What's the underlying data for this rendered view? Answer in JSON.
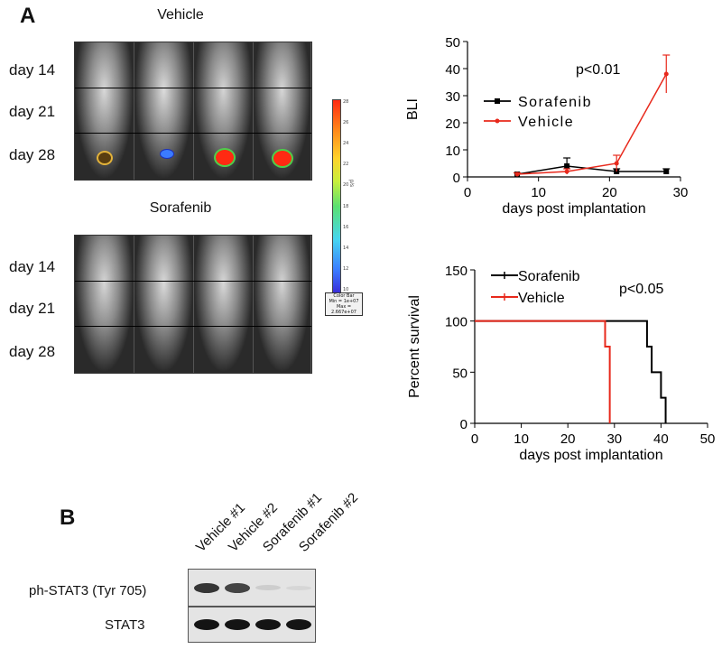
{
  "panels": {
    "a_label": "A",
    "b_label": "B"
  },
  "imaging": {
    "vehicle_title": "Vehicle",
    "sorafenib_title": "Sorafenib",
    "vehicle_rows": [
      "day 14",
      "day 21",
      "day 28"
    ],
    "sorafenib_rows": [
      "day 14",
      "day 21",
      "day 28"
    ],
    "colorbar": {
      "ticks": [
        "28",
        "26",
        "24",
        "22",
        "20",
        "18",
        "16",
        "14",
        "12",
        "10"
      ],
      "axis_label": "p/s",
      "box_lines": [
        "Color Bar",
        "Min = 1e+07",
        "Max = 2.667e+07"
      ]
    }
  },
  "chart_data": [
    {
      "type": "line",
      "ylabel": "BLI",
      "xlabel": "days post implantation",
      "xlim": [
        0,
        30
      ],
      "ylim": [
        0,
        50
      ],
      "xticks": [
        0,
        10,
        20,
        30
      ],
      "yticks": [
        0,
        10,
        20,
        30,
        40,
        50
      ],
      "annotation": "p<0.01",
      "legend_position": "center-left",
      "series": [
        {
          "name": "Sorafenib",
          "color": "#000000",
          "x": [
            7,
            14,
            21,
            28
          ],
          "y": [
            1,
            4,
            2,
            2
          ],
          "err": [
            0.5,
            3,
            1,
            1
          ]
        },
        {
          "name": "Vehicle",
          "color": "#e8291c",
          "x": [
            7,
            14,
            21,
            28
          ],
          "y": [
            1,
            2,
            5,
            38
          ],
          "err": [
            0.5,
            1,
            3,
            7
          ]
        }
      ]
    },
    {
      "type": "line",
      "ylabel": "Percent survival",
      "xlabel": "days post implantation",
      "xlim": [
        0,
        50
      ],
      "ylim": [
        0,
        150
      ],
      "xticks": [
        0,
        10,
        20,
        30,
        40,
        50
      ],
      "yticks": [
        0,
        50,
        100,
        150
      ],
      "annotation": "p<0.05",
      "legend_position": "top-left",
      "series": [
        {
          "name": "Sorafenib",
          "color": "#000000",
          "x": [
            0,
            37,
            37,
            38,
            38,
            40,
            40,
            41,
            41
          ],
          "y": [
            100,
            100,
            75,
            75,
            50,
            50,
            25,
            25,
            0
          ]
        },
        {
          "name": "Vehicle",
          "color": "#e8291c",
          "x": [
            0,
            28,
            28,
            29,
            29
          ],
          "y": [
            100,
            100,
            75,
            75,
            0
          ]
        }
      ]
    }
  ],
  "blot": {
    "lanes": [
      "Vehicle #1",
      "Vehicle #2",
      "Sorafenib #1",
      "Sorafenib #2"
    ],
    "rows": [
      {
        "label": "ph-STAT3 (Tyr 705)",
        "intensities": [
          0.9,
          0.85,
          0.2,
          0.12
        ]
      },
      {
        "label": "STAT3",
        "intensities": [
          1.0,
          1.0,
          1.0,
          1.0
        ]
      }
    ]
  }
}
